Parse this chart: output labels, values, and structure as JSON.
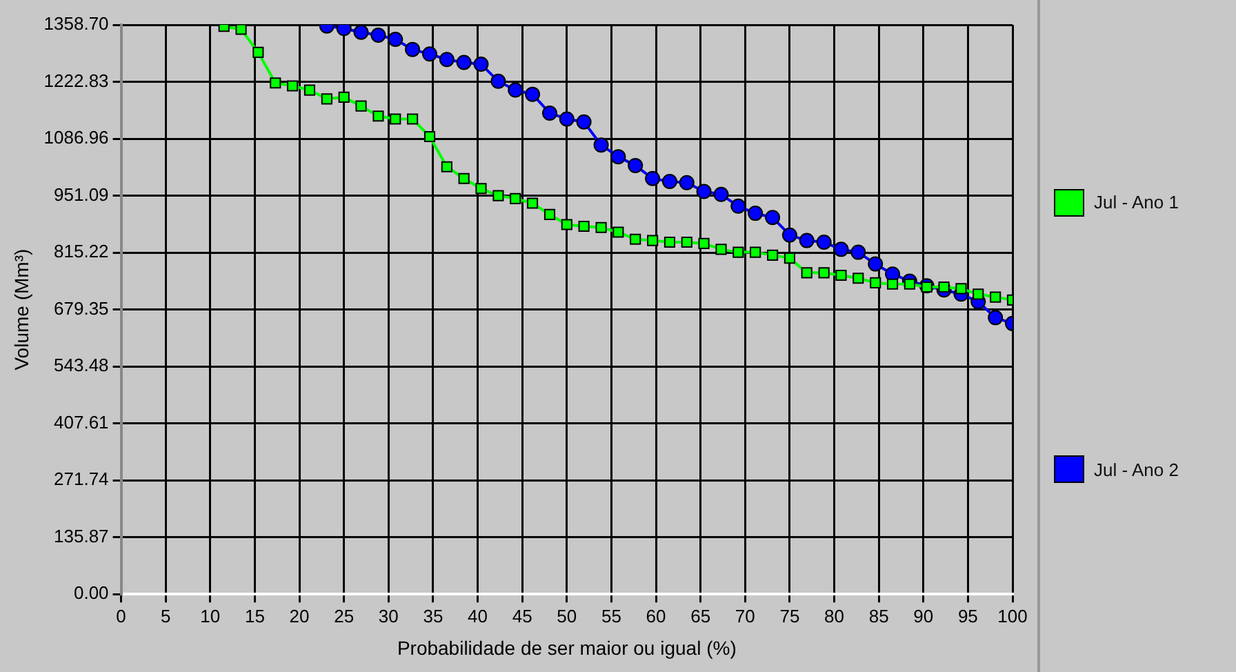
{
  "chart_data": {
    "type": "line",
    "xlabel": "Probabilidade de ser maior ou igual (%)",
    "ylabel": "Volume (Mm³)",
    "xlim": [
      0,
      100
    ],
    "xticks": [
      0,
      5,
      10,
      15,
      20,
      25,
      30,
      35,
      40,
      45,
      50,
      55,
      60,
      65,
      70,
      75,
      80,
      85,
      90,
      95,
      100
    ],
    "ylim": [
      0,
      1358.7
    ],
    "yticks": [
      {
        "value": 0,
        "label": "0.00"
      },
      {
        "value": 135.87,
        "label": "135.87"
      },
      {
        "value": 271.74,
        "label": "271.74"
      },
      {
        "value": 407.61,
        "label": "407.61"
      },
      {
        "value": 543.48,
        "label": "543.48"
      },
      {
        "value": 679.35,
        "label": "679.35"
      },
      {
        "value": 815.22,
        "label": "815.22"
      },
      {
        "value": 951.09,
        "label": "951.09"
      },
      {
        "value": 1086.96,
        "label": "1086.96"
      },
      {
        "value": 1222.83,
        "label": "1222.83"
      },
      {
        "value": 1358.7,
        "label": "1358.70"
      }
    ],
    "grid": true,
    "legend": "right",
    "series": [
      {
        "name": "Jul - Ano 1",
        "color": "#00ff00",
        "marker": "square",
        "x": [
          11.54,
          13.46,
          15.38,
          17.31,
          19.23,
          21.15,
          23.08,
          25,
          26.92,
          28.85,
          30.77,
          32.69,
          34.62,
          36.54,
          38.46,
          40.38,
          42.31,
          44.23,
          46.15,
          48.08,
          50,
          51.92,
          53.85,
          55.77,
          57.69,
          59.62,
          61.54,
          63.46,
          65.38,
          67.31,
          69.23,
          71.15,
          73.08,
          75,
          76.92,
          78.85,
          80.77,
          82.69,
          84.62,
          86.54,
          88.46,
          90.38,
          92.31,
          94.23,
          96.15,
          98.08,
          100
        ],
        "values": [
          1355,
          1348,
          1293,
          1220,
          1213,
          1203,
          1182,
          1186,
          1165,
          1141,
          1134,
          1134,
          1092,
          1020,
          992,
          968,
          951,
          944,
          933,
          906,
          882,
          878,
          875,
          864,
          847,
          844,
          840,
          840,
          837,
          823,
          816,
          816,
          809,
          802,
          767,
          767,
          761,
          754,
          743,
          740,
          740,
          733,
          733,
          729,
          716,
          709,
          702
        ]
      },
      {
        "name": "Jul - Ano 2",
        "color": "#0000ff",
        "marker": "circle",
        "x": [
          23.08,
          25,
          26.92,
          28.85,
          30.77,
          32.69,
          34.62,
          36.54,
          38.46,
          40.38,
          42.31,
          44.23,
          46.15,
          48.08,
          50,
          51.92,
          53.85,
          55.77,
          57.69,
          59.62,
          61.54,
          63.46,
          65.38,
          67.31,
          69.23,
          71.15,
          73.08,
          75,
          76.92,
          78.85,
          80.77,
          82.69,
          84.62,
          86.54,
          88.46,
          90.38,
          92.31,
          94.23,
          96.15,
          98.08,
          100
        ],
        "values": [
          1356,
          1350,
          1341,
          1334,
          1324,
          1300,
          1289,
          1276,
          1269,
          1265,
          1224,
          1203,
          1193,
          1148,
          1134,
          1127,
          1072,
          1044,
          1023,
          992,
          985,
          982,
          961,
          954,
          926,
          909,
          899,
          857,
          844,
          840,
          823,
          816,
          788,
          764,
          747,
          736,
          726,
          716,
          698,
          660,
          646
        ]
      }
    ]
  }
}
